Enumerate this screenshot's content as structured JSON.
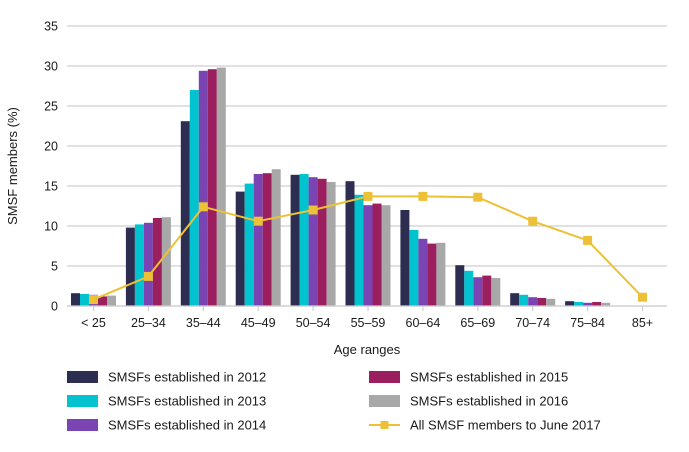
{
  "chart_data": {
    "type": "bar",
    "title": "",
    "xlabel": "Age ranges",
    "ylabel": "SMSF members (%)",
    "ylim": [
      0,
      35
    ],
    "yticks": [
      0,
      5,
      10,
      15,
      20,
      25,
      30,
      35
    ],
    "ytick_labels": [
      "0",
      "5",
      "10",
      "15",
      "20",
      "25",
      "30",
      "35"
    ],
    "grid": true,
    "legend_position": "bottom",
    "categories": [
      "< 25",
      "25–34",
      "35–44",
      "45–49",
      "50–54",
      "55–59",
      "60–64",
      "65–69",
      "70–74",
      "75–84",
      "85+"
    ],
    "series": [
      {
        "name": "SMSFs established in 2012",
        "kind": "bar",
        "color": "#2d2d52",
        "values": [
          1.6,
          9.8,
          23.1,
          14.3,
          16.4,
          15.6,
          12.0,
          5.1,
          1.6,
          0.6,
          null
        ]
      },
      {
        "name": "SMSFs established in 2013",
        "kind": "bar",
        "color": "#00c3cf",
        "values": [
          1.5,
          10.2,
          27.0,
          15.3,
          16.5,
          13.9,
          9.5,
          4.4,
          1.4,
          0.5,
          null
        ]
      },
      {
        "name": "SMSFs established in 2014",
        "kind": "bar",
        "color": "#7b44b3",
        "values": [
          1.4,
          10.4,
          29.4,
          16.5,
          16.1,
          12.6,
          8.4,
          3.6,
          1.1,
          0.4,
          null
        ]
      },
      {
        "name": "SMSFs established in 2015",
        "kind": "bar",
        "color": "#9b1f5e",
        "values": [
          1.2,
          11.0,
          29.6,
          16.6,
          15.9,
          12.8,
          7.8,
          3.8,
          1.0,
          0.5,
          null
        ]
      },
      {
        "name": "SMSFs established in 2016",
        "kind": "bar",
        "color": "#a8a8a8",
        "values": [
          1.3,
          11.1,
          29.8,
          17.1,
          15.5,
          12.6,
          7.9,
          3.5,
          0.9,
          0.4,
          null
        ]
      },
      {
        "name": "All SMSF members to June 2017",
        "kind": "line",
        "color": "#ecc137",
        "values": [
          0.8,
          3.7,
          12.4,
          10.6,
          12.0,
          13.7,
          13.7,
          13.6,
          10.6,
          8.2,
          1.1
        ]
      }
    ]
  },
  "legend": {
    "items": [
      {
        "label": "SMSFs established in 2012",
        "color": "#2d2d52",
        "kind": "bar"
      },
      {
        "label": "SMSFs established in 2013",
        "color": "#00c3cf",
        "kind": "bar"
      },
      {
        "label": "SMSFs established in 2014",
        "color": "#7b44b3",
        "kind": "bar"
      },
      {
        "label": "SMSFs established in 2015",
        "color": "#9b1f5e",
        "kind": "bar"
      },
      {
        "label": "SMSFs established in 2016",
        "color": "#a8a8a8",
        "kind": "bar"
      },
      {
        "label": "All SMSF members to June 2017",
        "color": "#ecc137",
        "kind": "line"
      }
    ]
  },
  "colors": {
    "grid": "#cfcfcf",
    "text": "#1a1a1a"
  }
}
